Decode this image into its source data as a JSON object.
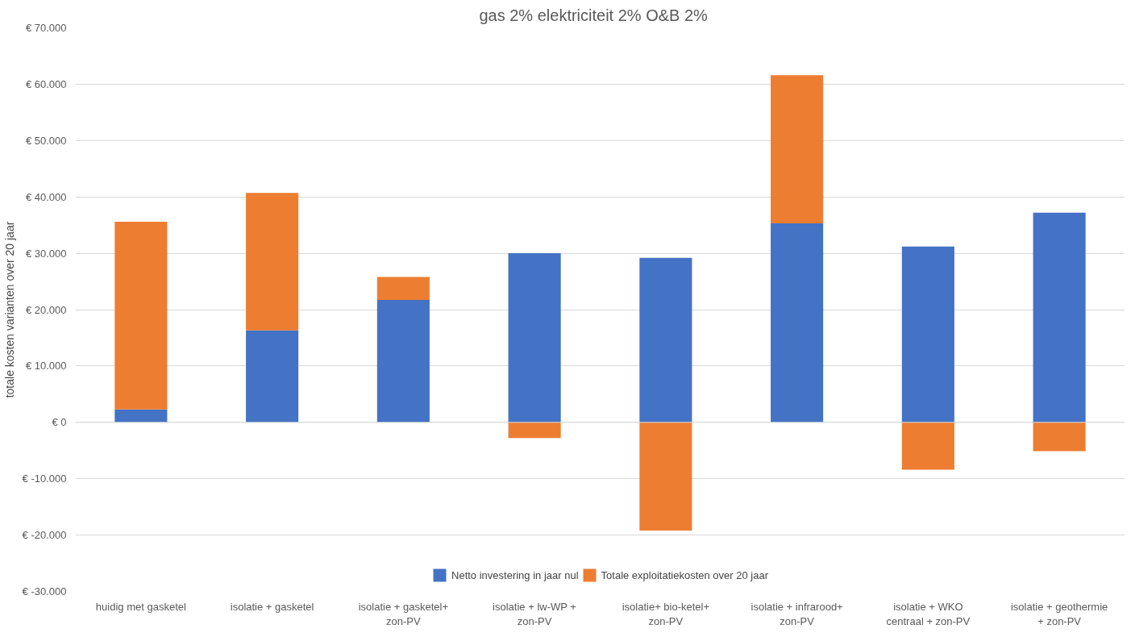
{
  "chart_data": {
    "type": "bar",
    "title": "gas  2% elektriciteit  2% O&B  2%",
    "ylabel": "totale kosten varianten over 20 jaar",
    "categories": [
      "huidig met gasketel",
      "isolatie + gasketel",
      "isolatie + gasketel+ zon-PV",
      "isolatie + lw-WP + zon-PV",
      "isolatie+ bio-ketel+ zon-PV",
      "isolatie + infrarood+ zon-PV",
      "isolatie + WKO centraal + zon-PV",
      "isolatie + geothermie + zon-PV"
    ],
    "series": [
      {
        "name": "Netto investering in jaar nul",
        "color": "#4472c4",
        "values": [
          2300,
          16300,
          21700,
          30000,
          29200,
          35300,
          31200,
          37200
        ]
      },
      {
        "name": "Totale exploitatiekosten over 20 jaar",
        "color": "#ed7d31",
        "values": [
          33300,
          24400,
          4100,
          -2800,
          -19200,
          26300,
          -8400,
          -5100
        ]
      }
    ],
    "stacked": true,
    "ylim": [
      -30000,
      70000
    ],
    "yticks": [
      {
        "value": -30000,
        "label": "€ -30.000"
      },
      {
        "value": -20000,
        "label": "€ -20.000"
      },
      {
        "value": -10000,
        "label": "€ -10.000"
      },
      {
        "value": 0,
        "label": "€ 0"
      },
      {
        "value": 10000,
        "label": "€ 10.000"
      },
      {
        "value": 20000,
        "label": "€ 20.000"
      },
      {
        "value": 30000,
        "label": "€ 30.000"
      },
      {
        "value": 40000,
        "label": "€ 40.000"
      },
      {
        "value": 50000,
        "label": "€ 50.000"
      },
      {
        "value": 60000,
        "label": "€ 60.000"
      },
      {
        "value": 70000,
        "label": "€ 70.000"
      }
    ],
    "grid": "y",
    "legend": "bottom"
  }
}
